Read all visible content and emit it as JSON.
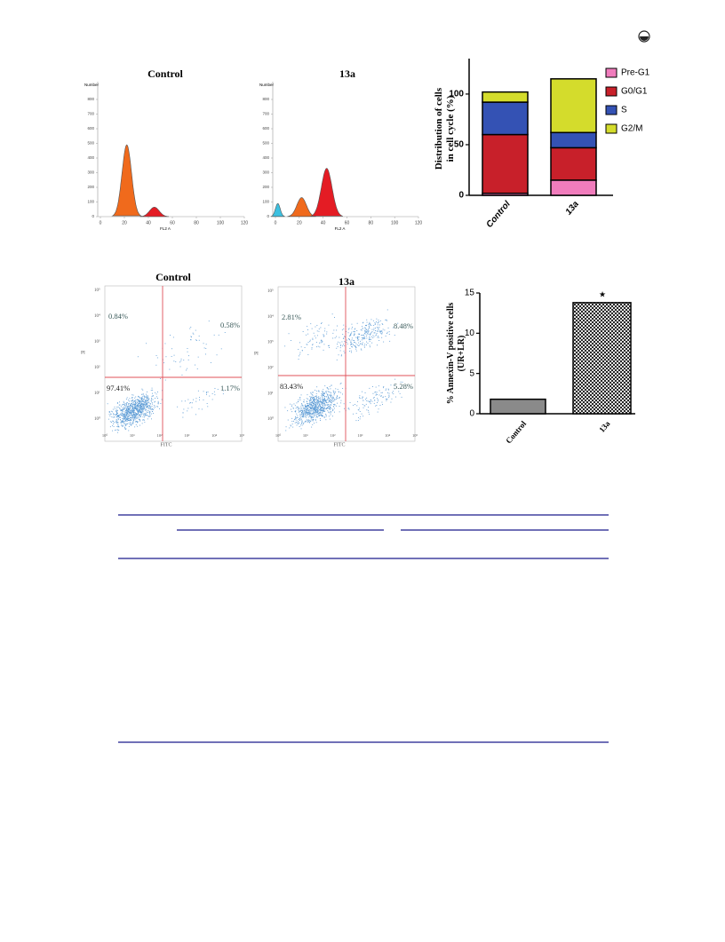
{
  "histograms": [
    {
      "title": "Control",
      "xlabel": "FL2 A",
      "ylabel": "Number",
      "xticks": [
        0,
        20,
        40,
        60,
        80,
        100,
        120
      ],
      "yticks": [
        0,
        100,
        200,
        300,
        400,
        500,
        600,
        700,
        800
      ],
      "xlim": [
        0,
        120
      ],
      "ylim": [
        0,
        800
      ]
    },
    {
      "title": "13a",
      "xlabel": "FL2 A",
      "ylabel": "Number",
      "xticks": [
        0,
        20,
        40,
        60,
        80,
        100,
        120
      ],
      "yticks": [
        0,
        100,
        200,
        300,
        400,
        500,
        600,
        700,
        800
      ],
      "xlim": [
        0,
        120
      ],
      "ylim": [
        0,
        800
      ]
    }
  ],
  "cell_cycle": {
    "type": "bar",
    "stacked": true,
    "ylabel": [
      "Distribution of cells",
      "in cell cycle (%)"
    ],
    "categories": [
      "Control",
      "13a"
    ],
    "series": [
      {
        "name": "Pre-G1",
        "color": "#f07cbc",
        "values": [
          2,
          15
        ]
      },
      {
        "name": "G0/G1",
        "color": "#c8202a",
        "values": [
          58,
          32
        ]
      },
      {
        "name": "S",
        "color": "#3452b4",
        "values": [
          32,
          15
        ]
      },
      {
        "name": "G2/M",
        "color": "#d4dc2c",
        "values": [
          10,
          53
        ]
      }
    ],
    "ylim": [
      0,
      135
    ],
    "yticks": [
      0,
      50,
      100
    ]
  },
  "scatter_plots": [
    {
      "title": "Control",
      "xlabel": "FITC",
      "ylabel": "PI",
      "ticks": [
        "10⁰",
        "10¹",
        "10²",
        "10³",
        "10⁴",
        "10⁵"
      ],
      "quadrants": [
        "0.84%",
        "0.58%",
        "97.41%",
        "1.17%"
      ]
    },
    {
      "title": "13a",
      "xlabel": "FITC",
      "ylabel": "PI",
      "ticks": [
        "10⁰",
        "10¹",
        "10²",
        "10³",
        "10⁴",
        "10⁵"
      ],
      "quadrants": [
        "2.81%",
        "8.48%",
        "83.43%",
        "5.28%"
      ]
    }
  ],
  "annexin": {
    "type": "bar",
    "ylabel": [
      "% Annexin-V positive cells",
      "(UR+LR)"
    ],
    "categories": [
      "Control",
      "13a"
    ],
    "values": [
      1.8,
      13.8
    ],
    "colors": [
      "#8a8a8a",
      "#444444"
    ],
    "annotation": "★",
    "ylim": [
      0,
      15
    ],
    "yticks": [
      0,
      5,
      10,
      15
    ]
  }
}
